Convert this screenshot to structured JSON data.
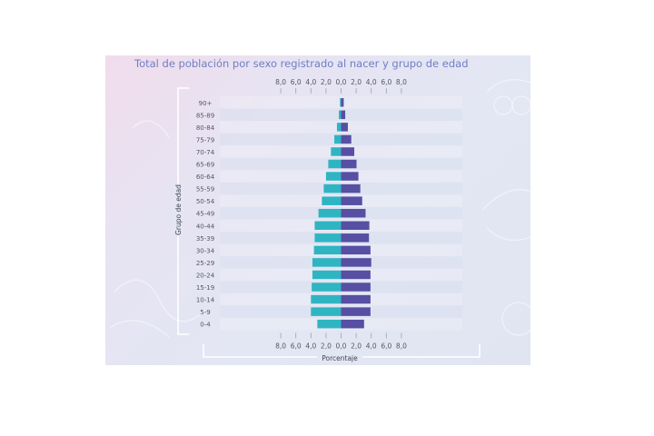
{
  "colors": {
    "male": "#2fb5c2",
    "female": "#574fa3",
    "title": "#6d7fc4",
    "text": "#555566",
    "bracket": "#ffffff"
  },
  "chart_data": {
    "type": "bar",
    "orientation": "horizontal-population-pyramid",
    "title": "Total de población por sexo registrado al nacer y grupo de edad",
    "xlabel": "Porcentaje",
    "ylabel": "Grupo de edad",
    "xlim": [
      -8,
      8
    ],
    "xticks": [
      -8,
      -6,
      -4,
      -2,
      0,
      2,
      4,
      6,
      8
    ],
    "tick_labels": [
      "8,0",
      "6,0",
      "4,0",
      "2,0",
      "0,0",
      "2,0",
      "4,0",
      "6,0",
      "8,0"
    ],
    "categories": [
      "90+",
      "85-89",
      "80-84",
      "75-79",
      "70-74",
      "65-69",
      "60-64",
      "55-59",
      "50-54",
      "45-49",
      "40-44",
      "35-39",
      "30-34",
      "25-29",
      "20-24",
      "15-19",
      "10-14",
      "5-9",
      "0-4"
    ],
    "series": [
      {
        "values": [
          0.15,
          0.3,
          0.55,
          0.9,
          1.35,
          1.7,
          2.0,
          2.3,
          2.55,
          3.0,
          3.5,
          3.5,
          3.6,
          3.8,
          3.8,
          3.9,
          4.0,
          4.0,
          3.15
        ]
      },
      {
        "values": [
          0.35,
          0.55,
          0.9,
          1.35,
          1.75,
          2.05,
          2.3,
          2.55,
          2.8,
          3.25,
          3.75,
          3.7,
          3.9,
          4.0,
          3.9,
          3.9,
          3.9,
          3.9,
          3.05
        ]
      }
    ],
    "grid": false,
    "legend": "none"
  }
}
